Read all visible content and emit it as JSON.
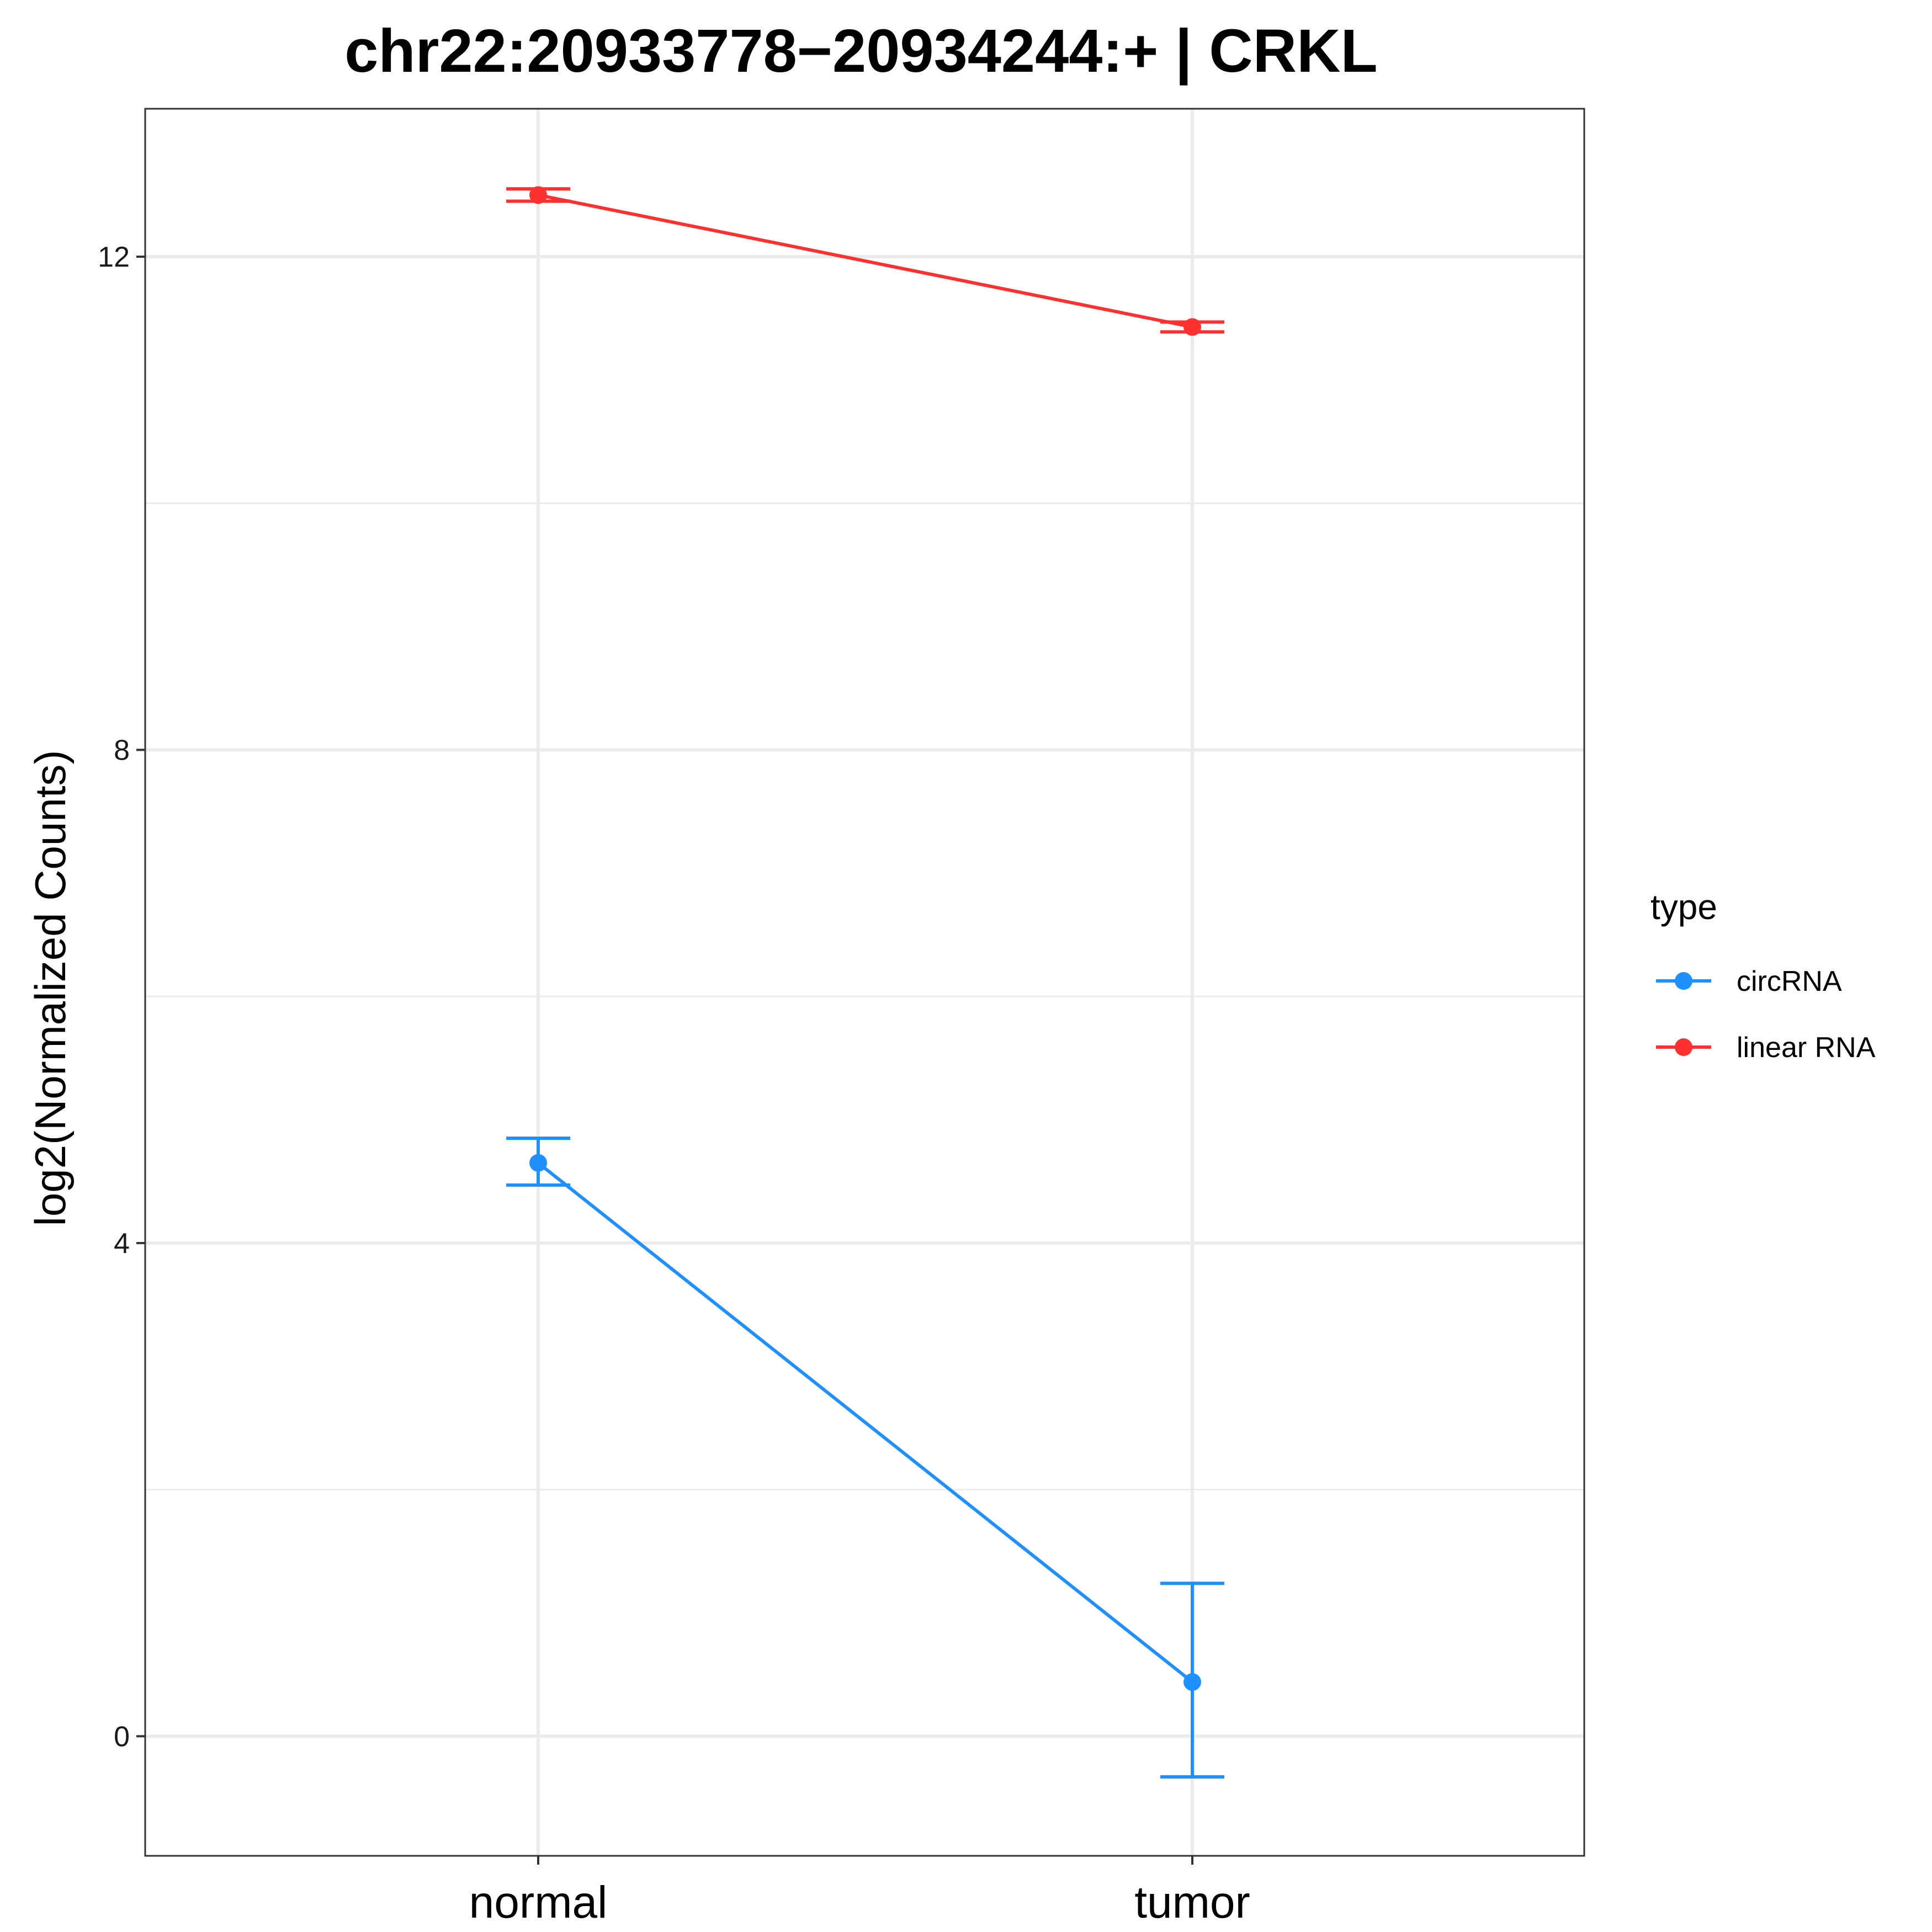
{
  "chart_data": {
    "type": "line",
    "title": "chr22:20933778−20934244:+ | CRKL",
    "xlabel": "",
    "ylabel": "log2(Normalized Counts)",
    "categories": [
      "normal",
      "tumor"
    ],
    "ylim": [
      -0.97,
      13.2
    ],
    "yticks": [
      0,
      4,
      8,
      12
    ],
    "grid": true,
    "legend": {
      "title": "type",
      "placement": "right"
    },
    "series": [
      {
        "name": "circRNA",
        "color": "#1E90FF",
        "values": [
          4.65,
          0.44
        ],
        "error_low": [
          4.47,
          -0.33
        ],
        "error_high": [
          4.85,
          1.24
        ]
      },
      {
        "name": "linear RNA",
        "color": "#FF3030",
        "values": [
          12.5,
          11.43
        ],
        "error_low": [
          12.45,
          11.39
        ],
        "error_high": [
          12.55,
          11.47
        ]
      }
    ]
  }
}
